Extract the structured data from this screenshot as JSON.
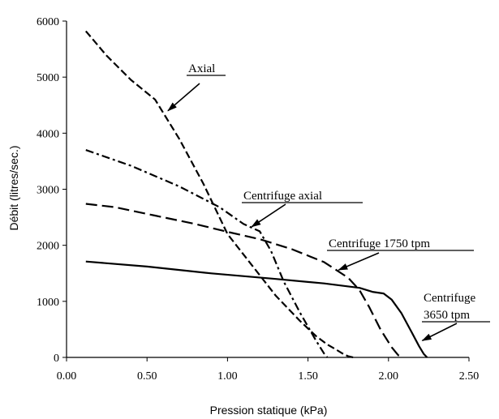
{
  "chart_data": {
    "type": "line",
    "xlabel": "Pression statique (kPa)",
    "ylabel": "Débit (litres/sec.)",
    "xlim": [
      0,
      2.5
    ],
    "ylim": [
      0,
      6000
    ],
    "xticks": [
      "0.00",
      "0.50",
      "1.00",
      "1.50",
      "2.00",
      "2.50"
    ],
    "yticks": [
      "0",
      "1000",
      "2000",
      "3000",
      "4000",
      "5000",
      "6000"
    ],
    "grid": false,
    "series": [
      {
        "name": "Axial",
        "style": "dash",
        "x": [
          0.12,
          0.25,
          0.4,
          0.55,
          0.7,
          0.85,
          1.0,
          1.15,
          1.3,
          1.45,
          1.55,
          1.62,
          1.68,
          1.72,
          1.75,
          1.78
        ],
        "y": [
          5820,
          5380,
          4950,
          4600,
          3900,
          3100,
          2200,
          1650,
          1100,
          650,
          380,
          230,
          130,
          60,
          20,
          0
        ]
      },
      {
        "name": "Centrifuge axial",
        "style": "dash-dot",
        "x": [
          0.12,
          0.4,
          0.7,
          0.95,
          1.1,
          1.2,
          1.27,
          1.35,
          1.45,
          1.55,
          1.6,
          1.62
        ],
        "y": [
          3700,
          3420,
          3050,
          2680,
          2380,
          2250,
          1900,
          1350,
          800,
          300,
          70,
          0
        ]
      },
      {
        "name": "Centrifuge 1750 tpm",
        "style": "long-dash",
        "x": [
          0.12,
          0.3,
          0.55,
          0.8,
          1.0,
          1.2,
          1.4,
          1.6,
          1.75,
          1.82,
          1.88,
          1.95,
          2.02,
          2.06,
          2.09
        ],
        "y": [
          2740,
          2680,
          2530,
          2380,
          2240,
          2110,
          1930,
          1700,
          1420,
          1200,
          900,
          500,
          180,
          40,
          0
        ]
      },
      {
        "name": "Centrifuge 3650 tpm",
        "style": "solid",
        "x": [
          0.12,
          0.5,
          0.9,
          1.3,
          1.6,
          1.82,
          1.9,
          1.97,
          2.02,
          2.08,
          2.14,
          2.19,
          2.22,
          2.24
        ],
        "y": [
          1710,
          1620,
          1500,
          1400,
          1320,
          1240,
          1170,
          1140,
          1030,
          790,
          470,
          200,
          60,
          0
        ]
      }
    ],
    "annotations": [
      {
        "text": "Axial",
        "target": [
          0.63,
          4400
        ]
      },
      {
        "text": "Centrifuge axial",
        "target": [
          1.15,
          2330
        ]
      },
      {
        "text": "Centrifuge 1750 tpm",
        "target": [
          1.69,
          1560
        ]
      },
      {
        "text": "Centrifuge",
        "text2": "3650 tpm",
        "target": [
          2.21,
          300
        ]
      }
    ]
  },
  "colors": {
    "line": "#000000",
    "axis": "#000000",
    "background": "#ffffff"
  }
}
